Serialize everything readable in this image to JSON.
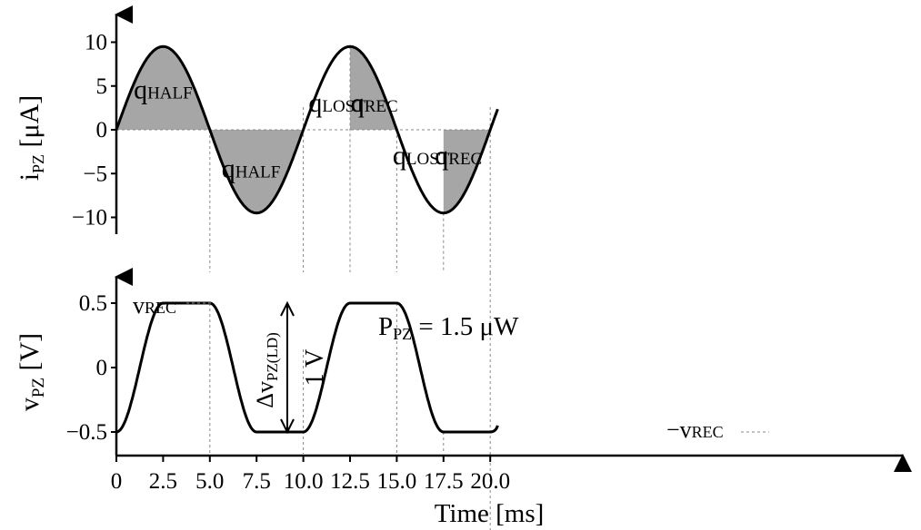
{
  "chart_data": [
    {
      "type": "area",
      "ylabel": "i",
      "ylabel_sub": "PZ",
      "ylabel_unit": " [μA]",
      "yticks": [
        10,
        5,
        0,
        -5,
        -10
      ],
      "ytick_labels": [
        "10",
        "5",
        "0",
        "−5",
        "−10"
      ],
      "x_range": [
        0,
        20.5
      ],
      "series": [
        {
          "x": [
            0,
            1.25,
            2.5,
            3.75,
            5.0,
            6.25,
            7.5,
            8.75,
            10.0,
            11.25,
            12.5,
            13.75,
            15.0,
            16.25,
            17.5,
            18.75,
            20.0,
            20.4
          ],
          "y": [
            0,
            6.7,
            9.5,
            6.7,
            0,
            -6.7,
            -9.5,
            -6.7,
            0,
            6.7,
            9.5,
            6.7,
            0,
            -6.7,
            -9.5,
            -6.7,
            0,
            2.2
          ]
        }
      ],
      "shaded_regions": [
        {
          "x_start": 0,
          "x_end": 5.0,
          "label": "q",
          "label_sub": "HALF"
        },
        {
          "x_start": 5.0,
          "x_end": 10.0,
          "label": "q",
          "label_sub": "HALF"
        },
        {
          "x_start": 10.0,
          "x_end": 12.5,
          "label": "q",
          "label_sub": "LOST",
          "shaded": false
        },
        {
          "x_start": 12.5,
          "x_end": 15.0,
          "label": "q",
          "label_sub": "REC"
        },
        {
          "x_start": 15.0,
          "x_end": 17.5,
          "label": "q",
          "label_sub": "LOST",
          "shaded": false
        },
        {
          "x_start": 17.5,
          "x_end": 20.0,
          "label": "q",
          "label_sub": "REC"
        }
      ]
    },
    {
      "type": "line",
      "ylabel": "v",
      "ylabel_sub": "PZ",
      "ylabel_unit": " [V]",
      "xlabel": "Time [ms]",
      "xticks": [
        0,
        2.5,
        5.0,
        7.5,
        10.0,
        12.5,
        15.0,
        17.5,
        20.0
      ],
      "xtick_labels": [
        "0",
        "2.5",
        "5.0",
        "7.5",
        "10.0",
        "12.5",
        "15.0",
        "17.5",
        "20.0"
      ],
      "yticks": [
        0.5,
        0,
        -0.5
      ],
      "ytick_labels": [
        "0.5",
        "0",
        "−0.5"
      ],
      "series": [
        {
          "x": [
            0,
            1.25,
            2.5,
            3.75,
            5.0,
            6.25,
            7.5,
            8.75,
            10.0,
            11.25,
            12.5,
            13.75,
            15.0,
            16.25,
            17.5,
            18.75,
            20.0,
            20.4
          ],
          "y": [
            -0.5,
            -0.15,
            0.5,
            0.5,
            0.5,
            0.15,
            -0.5,
            -0.5,
            -0.5,
            -0.15,
            0.5,
            0.5,
            0.5,
            0.15,
            -0.5,
            -0.5,
            -0.5,
            -0.45
          ]
        }
      ],
      "annotations": {
        "vrec": {
          "text": "v",
          "sub": "REC"
        },
        "neg_vrec": {
          "text": "−v",
          "sub": "REC"
        },
        "delta_v": {
          "text": "Δv",
          "sub": "PZ(LD)"
        },
        "one_volt": "1 V",
        "power": {
          "text": "P",
          "sub": "PZ",
          "rest": " = 1.5 μW"
        }
      }
    }
  ]
}
